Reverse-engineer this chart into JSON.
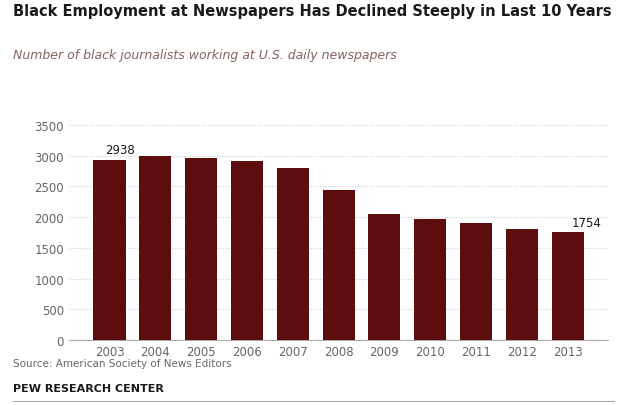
{
  "title": "Black Employment at Newspapers Has Declined Steeply in Last 10 Years",
  "subtitle": "Number of black journalists working at U.S. daily newspapers",
  "years": [
    2003,
    2004,
    2005,
    2006,
    2007,
    2008,
    2009,
    2010,
    2011,
    2012,
    2013
  ],
  "values": [
    2938,
    2991,
    2958,
    2910,
    2793,
    2439,
    2057,
    1964,
    1897,
    1802,
    1754
  ],
  "bar_color": "#5C0E0E",
  "label_first": "2938",
  "label_last": "1754",
  "ylim": [
    0,
    3700
  ],
  "yticks": [
    0,
    500,
    1000,
    1500,
    2000,
    2500,
    3000,
    3500
  ],
  "source_text": "Source: American Society of News Editors",
  "footer_text": "PEW RESEARCH CENTER",
  "bg_color": "#FFFFFF",
  "title_color": "#1a1a1a",
  "subtitle_color": "#8B6060",
  "grid_color": "#CCCCCC",
  "tick_color": "#666666",
  "source_color": "#666666",
  "footer_color": "#1a1a1a"
}
